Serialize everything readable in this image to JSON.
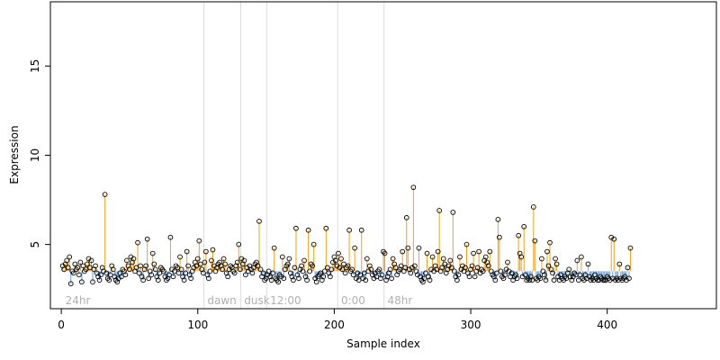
{
  "chart_data": {
    "type": "scatter",
    "xlabel": "Sample index",
    "ylabel": "Expression",
    "xlim": [
      -8,
      480
    ],
    "ylim": [
      1.4,
      18.6
    ],
    "xticks": [
      0,
      100,
      200,
      300,
      400
    ],
    "yticks": [
      5,
      10,
      15
    ],
    "baseline": 3.5,
    "colors": {
      "above": "#f0a020",
      "below": "#6a9ad6",
      "highlight": "#a8a8a8",
      "point": "#000000",
      "divider": "#dcdcdc"
    },
    "regions": [
      {
        "label": "24hr",
        "start": 1
      },
      {
        "label": "dawn",
        "start": 105
      },
      {
        "label": "dusk",
        "start": 132
      },
      {
        "label": "12:00",
        "start": 151
      },
      {
        "label": "0:00",
        "start": 203
      },
      {
        "label": "48hr",
        "start": 237
      }
    ],
    "highlight_indices": [
      281,
      326,
      355,
      431
    ],
    "values": [
      3.8,
      3.6,
      3.9,
      4.1,
      3.7,
      4.3,
      2.8,
      3.5,
      3.4,
      3.9,
      3.6,
      3.7,
      3.3,
      4.0,
      2.9,
      3.8,
      3.5,
      3.6,
      3.9,
      4.2,
      3.7,
      4.1,
      2.9,
      3.6,
      3.8,
      3.4,
      3.2,
      3.0,
      3.3,
      3.7,
      3.5,
      7.8,
      3.4,
      3.1,
      3.0,
      3.3,
      3.8,
      3.6,
      3.2,
      3.0,
      2.9,
      3.1,
      3.4,
      3.2,
      3.6,
      3.5,
      3.3,
      4.1,
      3.8,
      3.6,
      4.3,
      4.0,
      4.2,
      3.5,
      3.7,
      5.1,
      3.4,
      3.8,
      3.2,
      3.0,
      3.6,
      3.8,
      5.3,
      3.1,
      3.5,
      3.3,
      4.5,
      3.9,
      3.6,
      3.2,
      3.0,
      3.4,
      3.7,
      3.6,
      3.5,
      3.2,
      3.0,
      3.1,
      3.3,
      5.4,
      3.6,
      3.2,
      3.5,
      3.8,
      3.7,
      3.4,
      4.3,
      3.6,
      3.2,
      3.0,
      3.4,
      4.6,
      3.8,
      3.3,
      3.1,
      3.5,
      3.7,
      4.0,
      3.8,
      4.2,
      5.2,
      3.9,
      3.6,
      3.4,
      4.0,
      4.6,
      3.3,
      3.1,
      3.5,
      4.1,
      4.7,
      3.8,
      3.5,
      3.7,
      3.9,
      4.0,
      3.8,
      3.6,
      4.2,
      3.9,
      3.4,
      3.2,
      3.6,
      3.8,
      3.7,
      3.5,
      3.4,
      3.8,
      4.0,
      5.0,
      3.6,
      4.2,
      3.9,
      4.1,
      3.3,
      3.7,
      3.5,
      3.8,
      3.6,
      3.4,
      3.7,
      3.9,
      4.0,
      3.8,
      6.3,
      3.6,
      3.2,
      3.4,
      3.0,
      3.1,
      3.3,
      3.5,
      3.2,
      3.0,
      3.4,
      4.8,
      3.1,
      3.0,
      2.9,
      3.3,
      3.2,
      4.3,
      3.1,
      3.6,
      3.8,
      3.9,
      4.2,
      3.4,
      3.2,
      3.0,
      3.7,
      5.9,
      3.3,
      3.1,
      3.6,
      3.8,
      3.5,
      4.1,
      3.2,
      3.0,
      5.8,
      3.5,
      3.9,
      3.8,
      5.0,
      3.1,
      2.9,
      3.2,
      3.3,
      3.4,
      3.0,
      3.2,
      3.5,
      5.9,
      3.7,
      3.4,
      3.2,
      3.6,
      4.0,
      4.3,
      4.1,
      3.8,
      4.5,
      3.7,
      4.2,
      3.6,
      3.9,
      3.4,
      3.7,
      3.8,
      5.8,
      3.5,
      3.6,
      3.3,
      4.8,
      3.1,
      3.4,
      3.0,
      3.3,
      5.8,
      3.1,
      3.4,
      3.0,
      4.2,
      3.5,
      3.8,
      3.6,
      3.3,
      3.1,
      3.4,
      3.2,
      3.5,
      3.6,
      3.1,
      3.3,
      4.6,
      4.5,
      3.0,
      3.2,
      3.4,
      3.6,
      3.1,
      4.2,
      3.9,
      3.7,
      3.3,
      3.5,
      3.6,
      3.8,
      4.6,
      3.5,
      3.7,
      6.5,
      4.8,
      3.6,
      3.4,
      3.7,
      8.2,
      3.8,
      3.5,
      3.3,
      4.8,
      3.2,
      3.0,
      2.9,
      3.1,
      3.4,
      4.5,
      3.2,
      3.0,
      3.6,
      4.3,
      3.5,
      3.8,
      3.6,
      4.6,
      6.9,
      3.5,
      3.7,
      4.2,
      3.9,
      3.4,
      3.6,
      3.8,
      4.1,
      3.7,
      6.8,
      3.5,
      3.2,
      3.0,
      3.3,
      4.3,
      3.6,
      3.8,
      3.5,
      3.7,
      5.0,
      3.4,
      3.2,
      3.6,
      3.8,
      4.5,
      3.2,
      3.5,
      3.7,
      4.6,
      3.4,
      3.6,
      3.5,
      4.1,
      4.3,
      4.0,
      3.8,
      4.6,
      3.5,
      3.3,
      3.2,
      3.0,
      3.4,
      6.4,
      5.4,
      3.5,
      3.2,
      3.1,
      3.3,
      3.6,
      4.0,
      3.5,
      3.2,
      3.4,
      3.0,
      3.2,
      3.3,
      3.1,
      5.5,
      4.5,
      4.3,
      3.2,
      6.0,
      3.3,
      3.0,
      3.1,
      3.0,
      3.2,
      3.0,
      7.1,
      5.2,
      3.1,
      3.0,
      3.2,
      3.1,
      4.2,
      3.5,
      3.3,
      3.0,
      4.6,
      3.8,
      5.1,
      3.6,
      3.4,
      3.0,
      4.2,
      3.9,
      3.2,
      3.0,
      3.3,
      3.1,
      3.0,
      3.2,
      3.1,
      3.4,
      3.6,
      3.2,
      3.0,
      3.2,
      3.4,
      3.3,
      4.1,
      3.0,
      3.3,
      4.3,
      3.1,
      3.0,
      3.3,
      3.1,
      3.9,
      3.2,
      3.0,
      3.1,
      3.0,
      3.3,
      3.1,
      3.0,
      3.0,
      3.2,
      3.1,
      3.0,
      3.0,
      3.0,
      3.2,
      3.1,
      3.0,
      5.4,
      3.1,
      5.3,
      3.0,
      3.1,
      3.0,
      3.9,
      3.1,
      3.0,
      3.1,
      3.2,
      3.0,
      3.7,
      3.1,
      4.8
    ]
  }
}
